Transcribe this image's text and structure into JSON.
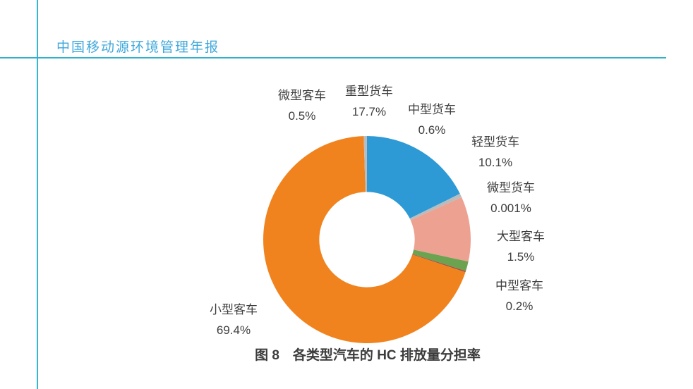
{
  "header": {
    "title": "中国移动源环境管理年报"
  },
  "chart_data": {
    "type": "pie",
    "subtype": "donut",
    "title": "图 8　各类型汽车的 HC 排放量分担率",
    "unit": "%",
    "start_angle_deg": 0,
    "direction": "clockwise",
    "inner_radius_ratio": 0.46,
    "series": [
      {
        "label": "重型货车",
        "value": 17.7,
        "display": "17.7%",
        "color": "#2d9ad5"
      },
      {
        "label": "中型货车",
        "value": 0.6,
        "display": "0.6%",
        "color": "#b9bcbe"
      },
      {
        "label": "轻型货车",
        "value": 10.1,
        "display": "10.1%",
        "color": "#eda291"
      },
      {
        "label": "微型货车",
        "value": 0.001,
        "display": "0.001%",
        "color": "#f2c14e"
      },
      {
        "label": "大型客车",
        "value": 1.5,
        "display": "1.5%",
        "color": "#6ba351"
      },
      {
        "label": "中型客车",
        "value": 0.2,
        "display": "0.2%",
        "color": "#a84e3f"
      },
      {
        "label": "小型客车",
        "value": 69.4,
        "display": "69.4%",
        "color": "#f0831e"
      },
      {
        "label": "微型客车",
        "value": 0.5,
        "display": "0.5%",
        "color": "#b9bcbe"
      }
    ],
    "accent_colors": {
      "rule_cyan": "#2fb0cc",
      "title_blue": "#3fa8db"
    }
  }
}
